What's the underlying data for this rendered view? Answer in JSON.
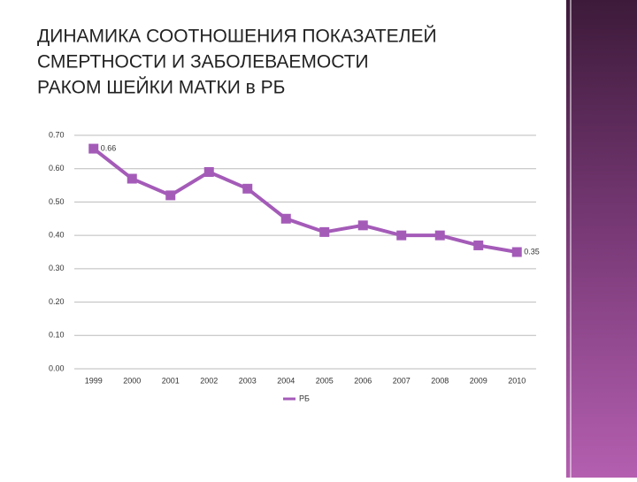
{
  "chart_data": {
    "type": "line",
    "title_lines": [
      "ДИНАМИКА СООТНОШЕНИЯ ПОКАЗАТЕЛЕЙ",
      "СМЕРТНОСТИ И ЗАБОЛЕВАЕМОСТИ",
      "РАКОМ ШЕЙКИ МАТКИ в РБ"
    ],
    "categories": [
      "1999",
      "2000",
      "2001",
      "2002",
      "2003",
      "2004",
      "2005",
      "2006",
      "2007",
      "2008",
      "2009",
      "2010"
    ],
    "series": [
      {
        "name": "РБ",
        "color": "#a45bb8",
        "values": [
          0.66,
          0.57,
          0.52,
          0.59,
          0.54,
          0.45,
          0.41,
          0.43,
          0.4,
          0.4,
          0.37,
          0.35
        ],
        "value_labels": [
          "0.66",
          null,
          null,
          null,
          null,
          null,
          null,
          null,
          null,
          null,
          null,
          "0.35"
        ]
      }
    ],
    "ylim": [
      0,
      0.7
    ],
    "yticks": [
      {
        "value": 0,
        "label": "0.00"
      },
      {
        "value": 0.1,
        "label": "0.10"
      },
      {
        "value": 0.2,
        "label": "0.20"
      },
      {
        "value": 0.3,
        "label": "0.30"
      },
      {
        "value": 0.4,
        "label": "0.40"
      },
      {
        "value": 0.5,
        "label": "0.50"
      },
      {
        "value": 0.6,
        "label": "0.60"
      },
      {
        "value": 0.7,
        "label": "0.70"
      }
    ],
    "grid": true,
    "legend": "bottom"
  }
}
